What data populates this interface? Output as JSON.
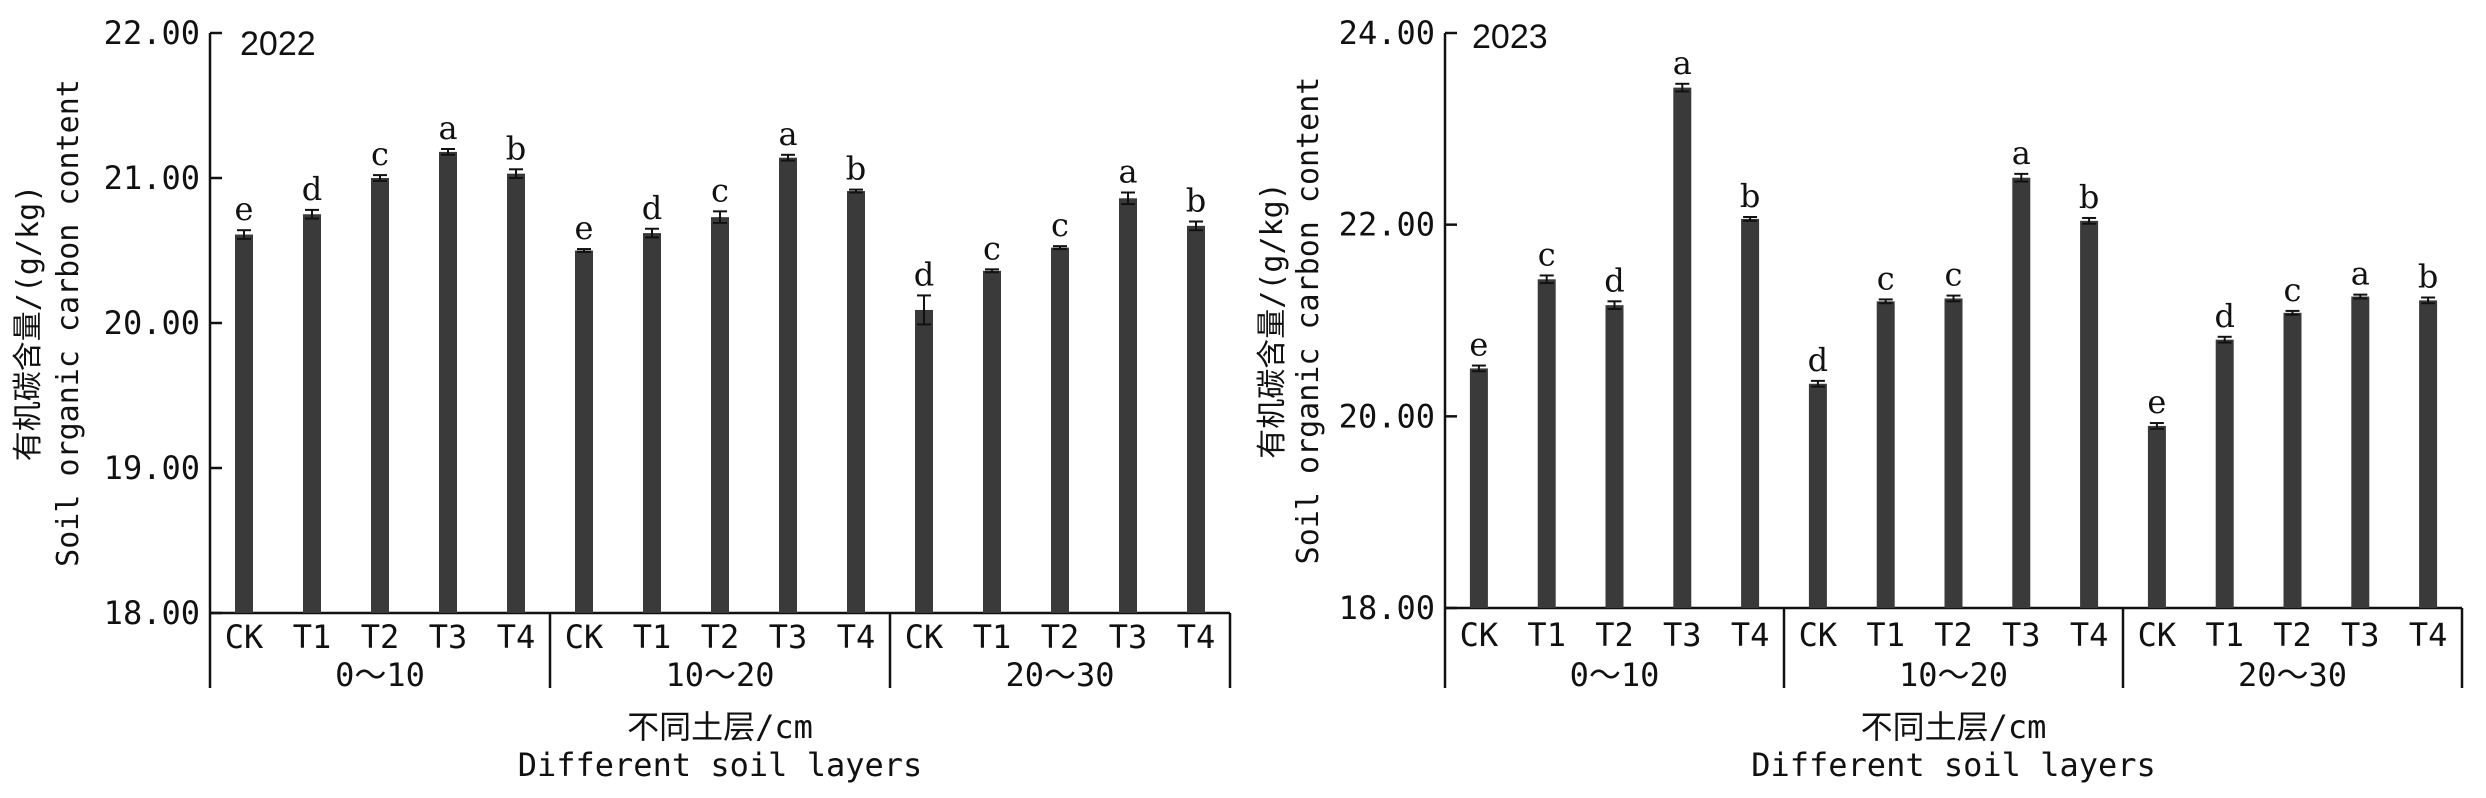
{
  "chart_data": [
    {
      "type": "bar",
      "title": "2022",
      "ylabel_cn": "有机碳含量/(g/kg)",
      "ylabel_en": "Soil organic carbon content",
      "xlabel_cn": "不同土层/cm",
      "xlabel_en": "Different soil layers",
      "ylim": [
        18,
        22
      ],
      "yticks": [
        "18.00",
        "19.00",
        "20.00",
        "21.00",
        "22.00"
      ],
      "groups": [
        {
          "label": "0～10",
          "categories": [
            "CK",
            "T1",
            "T2",
            "T3",
            "T4"
          ],
          "values": [
            20.61,
            20.75,
            21.0,
            21.18,
            21.03
          ],
          "errors": [
            0.03,
            0.03,
            0.02,
            0.02,
            0.03
          ],
          "letters": [
            "e",
            "d",
            "c",
            "a",
            "b"
          ]
        },
        {
          "label": "10～20",
          "categories": [
            "CK",
            "T1",
            "T2",
            "T3",
            "T4"
          ],
          "values": [
            20.5,
            20.62,
            20.73,
            21.14,
            20.91
          ],
          "errors": [
            0.01,
            0.03,
            0.04,
            0.02,
            0.01
          ],
          "letters": [
            "e",
            "d",
            "c",
            "a",
            "b"
          ]
        },
        {
          "label": "20～30",
          "categories": [
            "CK",
            "T1",
            "T2",
            "T3",
            "T4"
          ],
          "values": [
            20.09,
            20.36,
            20.52,
            20.86,
            20.67
          ],
          "errors": [
            0.1,
            0.01,
            0.01,
            0.04,
            0.03
          ],
          "letters": [
            "d",
            "c",
            "c",
            "a",
            "b"
          ]
        }
      ]
    },
    {
      "type": "bar",
      "title": "2023",
      "ylabel_cn": "有机碳含量/(g/kg)",
      "ylabel_en": "Soil organic carbon content",
      "xlabel_cn": "不同土层/cm",
      "xlabel_en": "Different soil layers",
      "ylim": [
        18,
        24
      ],
      "yticks": [
        "18.00",
        "20.00",
        "22.00",
        "24.00"
      ],
      "groups": [
        {
          "label": "0～10",
          "categories": [
            "CK",
            "T1",
            "T2",
            "T3",
            "T4"
          ],
          "values": [
            20.5,
            21.43,
            21.16,
            23.43,
            22.06
          ],
          "errors": [
            0.03,
            0.04,
            0.04,
            0.04,
            0.02
          ],
          "letters": [
            "e",
            "c",
            "d",
            "a",
            "b"
          ]
        },
        {
          "label": "10～20",
          "categories": [
            "CK",
            "T1",
            "T2",
            "T3",
            "T4"
          ],
          "values": [
            20.34,
            21.2,
            21.23,
            22.49,
            22.04
          ],
          "errors": [
            0.03,
            0.02,
            0.03,
            0.04,
            0.03
          ],
          "letters": [
            "d",
            "c",
            "c",
            "a",
            "b"
          ]
        },
        {
          "label": "20～30",
          "categories": [
            "CK",
            "T1",
            "T2",
            "T3",
            "T4"
          ],
          "values": [
            19.9,
            20.8,
            21.08,
            21.25,
            21.21
          ],
          "errors": [
            0.03,
            0.03,
            0.02,
            0.02,
            0.03
          ],
          "letters": [
            "e",
            "d",
            "c",
            "a",
            "b"
          ]
        }
      ]
    }
  ]
}
